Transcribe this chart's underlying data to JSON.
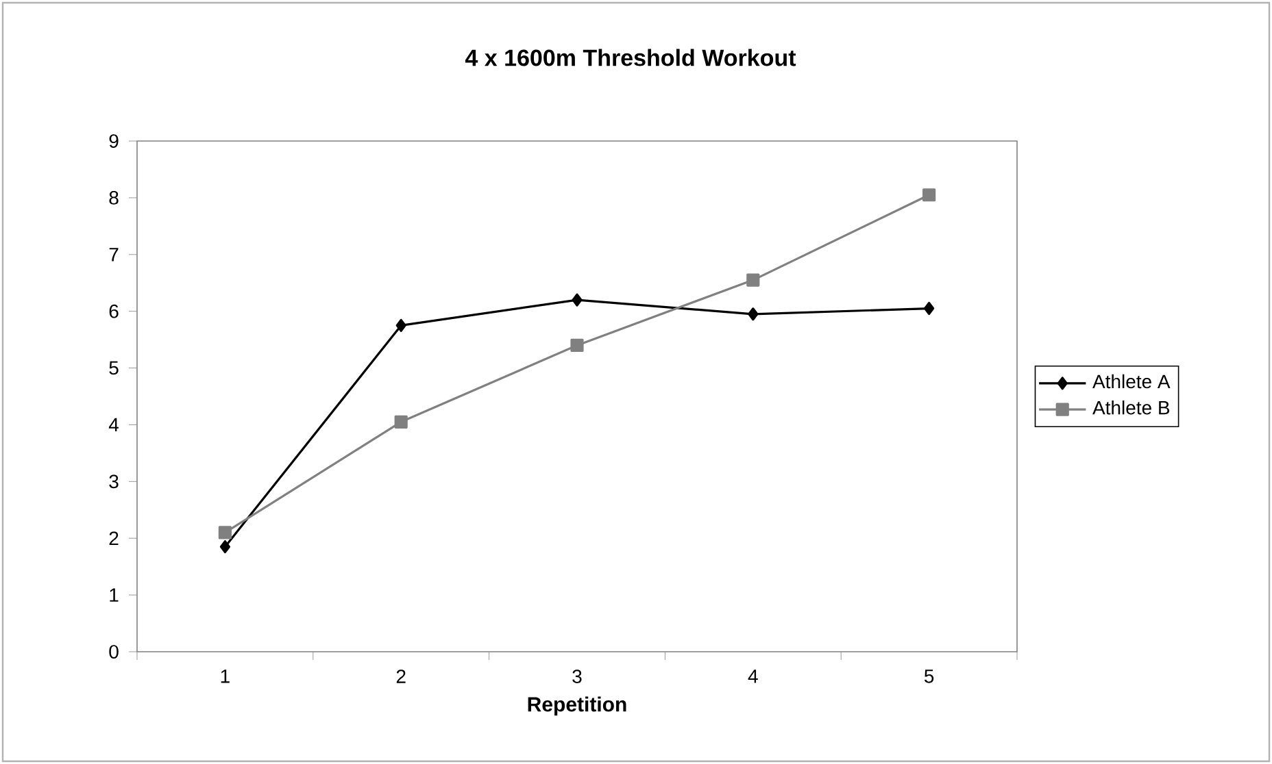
{
  "chart_data": {
    "type": "line",
    "title": "4 x 1600m Threshold Workout",
    "xlabel": "Repetition",
    "categories": [
      "1",
      "2",
      "3",
      "4",
      "5"
    ],
    "series": [
      {
        "name": "Athlete A",
        "color": "#000000",
        "marker": "diamond",
        "values": [
          1.85,
          5.75,
          6.2,
          5.95,
          6.05
        ]
      },
      {
        "name": "Athlete B",
        "color": "#808080",
        "marker": "square",
        "values": [
          2.1,
          4.05,
          5.4,
          6.55,
          8.05
        ]
      }
    ],
    "ylim": [
      0,
      9
    ],
    "yticks": [
      0,
      1,
      2,
      3,
      4,
      5,
      6,
      7,
      8,
      9
    ],
    "grid": false,
    "legend": "right",
    "line_style": "solid"
  }
}
